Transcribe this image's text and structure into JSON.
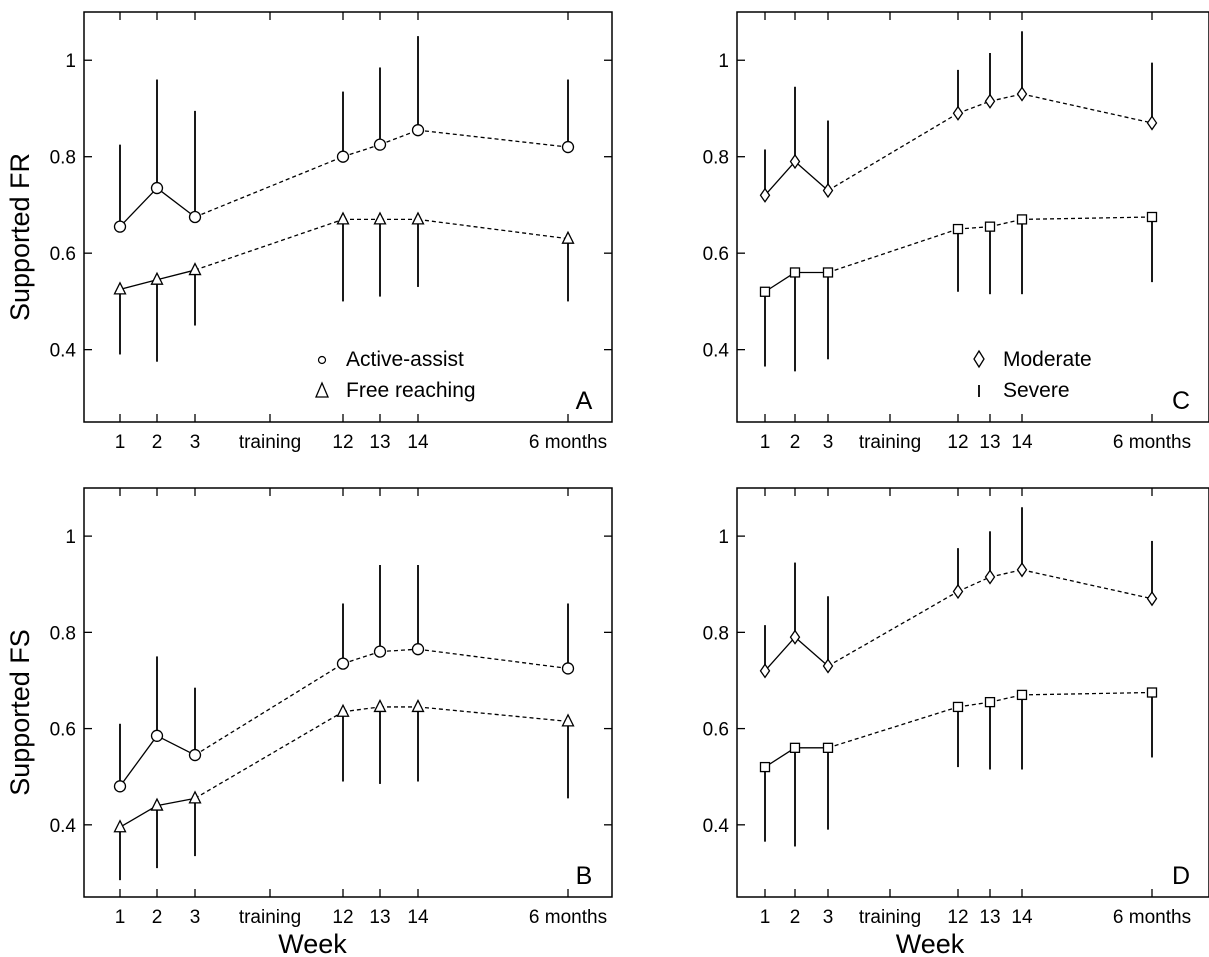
{
  "chart_data": [
    {
      "panel": "A",
      "type": "line",
      "ylabel": "Supported FR",
      "xlabel": "",
      "ylim": [
        0.25,
        1.1
      ],
      "yticks": [
        0.4,
        0.6,
        0.8,
        1
      ],
      "ytick_labels": [
        "0.4",
        "0.6",
        "0.8",
        "1"
      ],
      "categories": [
        "1",
        "2",
        "3",
        "training",
        "12",
        "13",
        "14",
        "6 months"
      ],
      "x": [
        1,
        2,
        3,
        12,
        13,
        14,
        "6 months"
      ],
      "series": [
        {
          "name": "Active-assist",
          "marker": "circle",
          "values": [
            0.655,
            0.735,
            0.675,
            0.8,
            0.825,
            0.855,
            0.82
          ],
          "err_upper": [
            0.825,
            0.96,
            0.895,
            0.935,
            0.985,
            1.05,
            0.96
          ]
        },
        {
          "name": "Free reaching",
          "marker": "triangle",
          "values": [
            0.525,
            0.545,
            0.565,
            0.67,
            0.67,
            0.67,
            0.63
          ],
          "err_lower": [
            0.39,
            0.375,
            0.45,
            0.5,
            0.51,
            0.53,
            0.5
          ]
        }
      ],
      "legend": "bottom-right"
    },
    {
      "panel": "B",
      "type": "line",
      "ylabel": "Supported FS",
      "xlabel": "Week",
      "ylim": [
        0.25,
        1.1
      ],
      "yticks": [
        0.4,
        0.6,
        0.8,
        1
      ],
      "ytick_labels": [
        "0.4",
        "0.6",
        "0.8",
        "1"
      ],
      "categories": [
        "1",
        "2",
        "3",
        "training",
        "12",
        "13",
        "14",
        "6 months"
      ],
      "x": [
        1,
        2,
        3,
        12,
        13,
        14,
        "6 months"
      ],
      "series": [
        {
          "marker": "circle",
          "values": [
            0.48,
            0.585,
            0.545,
            0.735,
            0.76,
            0.765,
            0.725
          ],
          "err_upper": [
            0.61,
            0.75,
            0.685,
            0.86,
            0.94,
            0.94,
            0.86
          ]
        },
        {
          "marker": "triangle",
          "values": [
            0.395,
            0.44,
            0.455,
            0.635,
            0.645,
            0.645,
            0.615
          ],
          "err_lower": [
            0.285,
            0.31,
            0.335,
            0.49,
            0.485,
            0.49,
            0.455
          ]
        }
      ]
    },
    {
      "panel": "C",
      "type": "line",
      "xlabel": "",
      "ylim": [
        0.25,
        1.1
      ],
      "yticks": [
        0.4,
        0.6,
        0.8,
        1
      ],
      "ytick_labels": [
        "0.4",
        "0.6",
        "0.8",
        "1"
      ],
      "categories": [
        "1",
        "2",
        "3",
        "training",
        "12",
        "13",
        "14",
        "6 months"
      ],
      "x": [
        1,
        2,
        3,
        12,
        13,
        14,
        "6 months"
      ],
      "series": [
        {
          "name": "Moderate",
          "marker": "diamond",
          "values": [
            0.72,
            0.79,
            0.73,
            0.89,
            0.915,
            0.93,
            0.87
          ],
          "err_upper": [
            0.815,
            0.945,
            0.875,
            0.98,
            1.015,
            1.06,
            0.995
          ]
        },
        {
          "name": "Severe",
          "marker": "square",
          "values": [
            0.52,
            0.56,
            0.56,
            0.65,
            0.655,
            0.67,
            0.675
          ],
          "err_lower": [
            0.365,
            0.355,
            0.38,
            0.52,
            0.515,
            0.515,
            0.54
          ]
        }
      ],
      "legend": "bottom-right"
    },
    {
      "panel": "D",
      "type": "line",
      "xlabel": "Week",
      "ylim": [
        0.25,
        1.1
      ],
      "yticks": [
        0.4,
        0.6,
        0.8,
        1
      ],
      "ytick_labels": [
        "0.4",
        "0.6",
        "0.8",
        "1"
      ],
      "categories": [
        "1",
        "2",
        "3",
        "training",
        "12",
        "13",
        "14",
        "6 months"
      ],
      "x": [
        1,
        2,
        3,
        12,
        13,
        14,
        "6 months"
      ],
      "series": [
        {
          "marker": "diamond",
          "values": [
            0.72,
            0.79,
            0.73,
            0.885,
            0.915,
            0.93,
            0.87
          ],
          "err_upper": [
            0.815,
            0.945,
            0.875,
            0.975,
            1.01,
            1.06,
            0.99
          ]
        },
        {
          "marker": "square",
          "values": [
            0.52,
            0.56,
            0.56,
            0.645,
            0.655,
            0.67,
            0.675
          ],
          "err_lower": [
            0.365,
            0.355,
            0.39,
            0.52,
            0.515,
            0.515,
            0.54
          ]
        }
      ]
    }
  ]
}
